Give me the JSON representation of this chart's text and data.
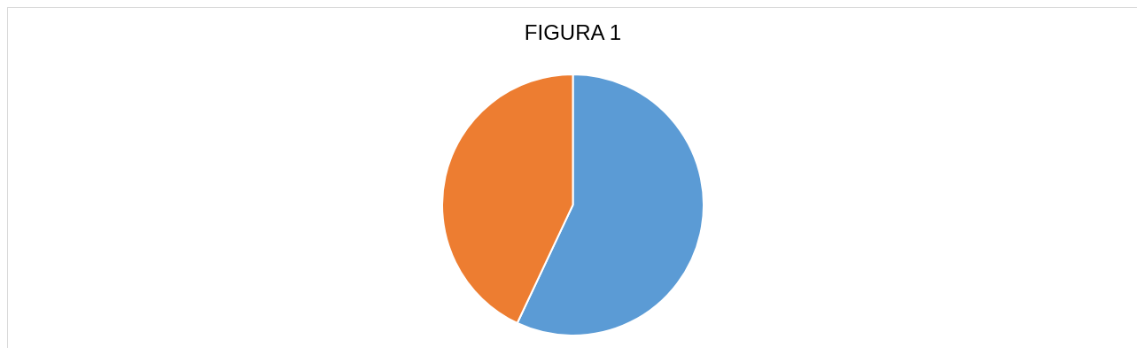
{
  "chart_data": {
    "type": "pie",
    "title": "FIGURA 1",
    "categories": [
      null,
      null
    ],
    "values": [
      57,
      43
    ],
    "colors": [
      "#5b9bd5",
      "#ed7d31"
    ],
    "legend": false
  }
}
